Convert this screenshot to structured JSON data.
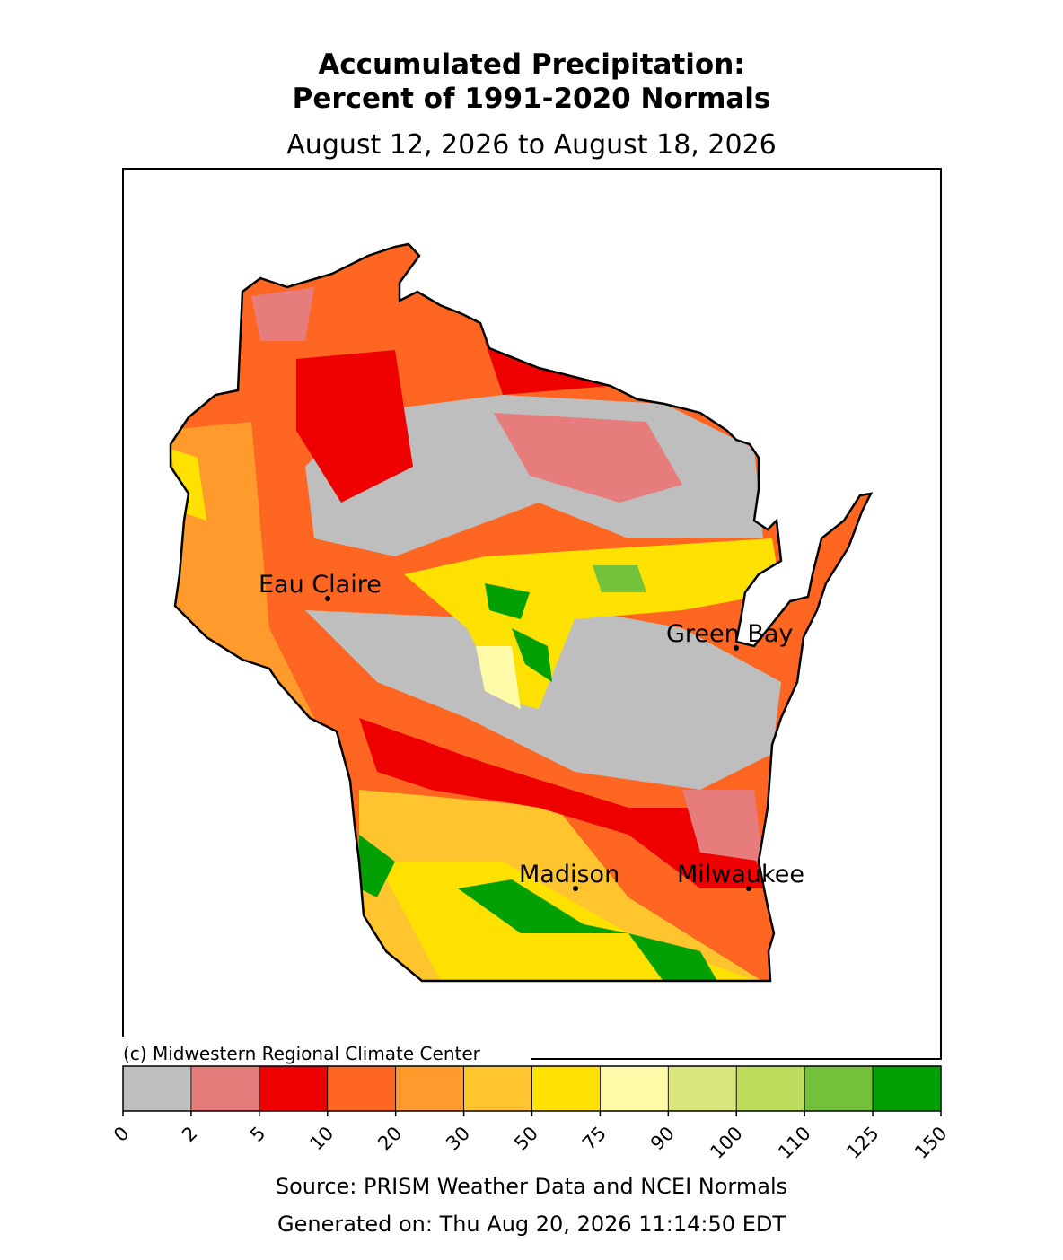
{
  "title": [
    "Accumulated Precipitation:",
    "Percent of 1991-2020 Normals"
  ],
  "subtitle": "August 12, 2026 to August 18, 2026",
  "cities": [
    {
      "name": "Eau Claire"
    },
    {
      "name": "Green Bay"
    },
    {
      "name": "Madison"
    },
    {
      "name": "Milwaukee"
    }
  ],
  "credit": "(c) Midwestern Regional Climate Center",
  "colorbar": {
    "bounds": [
      0,
      2,
      5,
      10,
      20,
      30,
      50,
      75,
      90,
      100,
      110,
      125,
      150
    ],
    "colors": [
      "#bebebe",
      "#e67c7c",
      "#ee0000",
      "#ff6622",
      "#ff9a2c",
      "#ffc42e",
      "#ffe100",
      "#fffaa8",
      "#dbe57e",
      "#bddc5c",
      "#74c13c",
      "#03a003"
    ]
  },
  "source": "Source: PRISM Weather Data and NCEI Normals",
  "generated": "Generated on: Thu Aug 20, 2026 11:14:50 EDT"
}
